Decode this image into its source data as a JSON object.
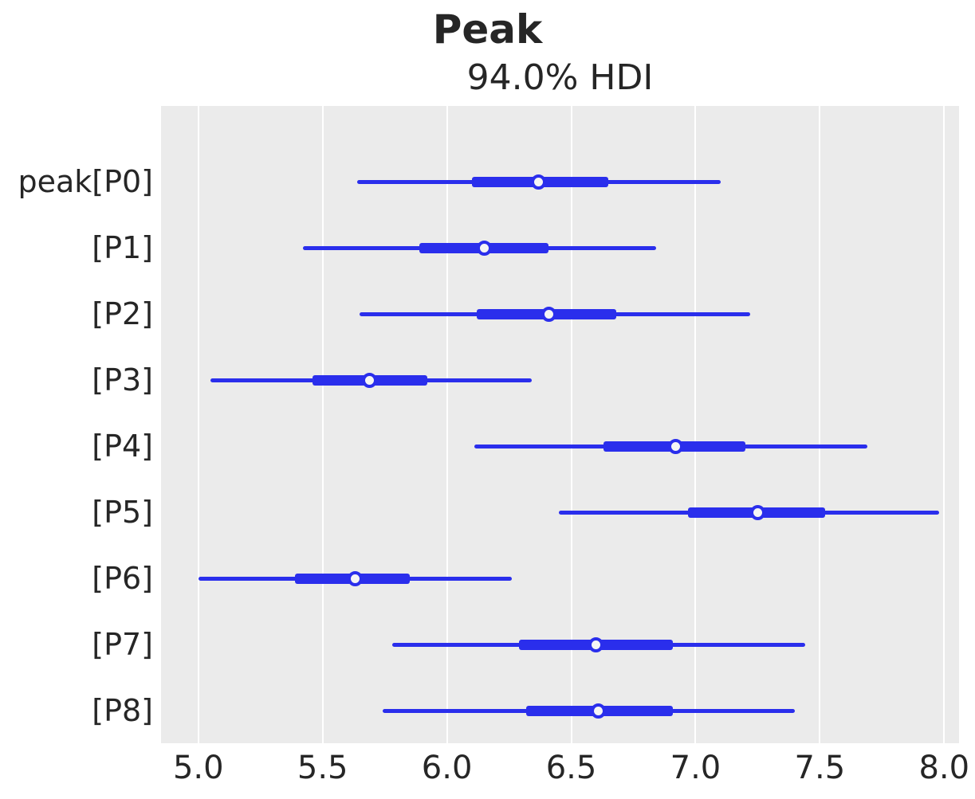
{
  "figure": {
    "title": "Peak",
    "subtitle": "94.0% HDI"
  },
  "chart_data": {
    "type": "forest",
    "title": "Peak",
    "subtitle": "94.0% HDI",
    "hdi_prob": 0.94,
    "xlabel": "",
    "ylabel": "",
    "xlim": [
      4.85,
      8.06
    ],
    "x_tick_values": [
      5.0,
      5.5,
      6.0,
      6.5,
      7.0,
      7.5,
      8.0
    ],
    "x_tick_labels": [
      "5.0",
      "5.5",
      "6.0",
      "6.5",
      "7.0",
      "7.5",
      "8.0"
    ],
    "grid": "vertical gridlines, white on light-gray panel",
    "legend": "none",
    "colors": {
      "line": "#2a2eec",
      "marker_face": "#f5f5f5",
      "plot_bg": "#ebebeb",
      "grid": "#ffffff",
      "text": "#262626",
      "page_bg": "#ffffff"
    },
    "rows": [
      {
        "label": "peak[P0]",
        "hdi_94": [
          5.64,
          7.1
        ],
        "interquartile": [
          6.1,
          6.65
        ],
        "median": 6.37
      },
      {
        "label": "[P1]",
        "hdi_94": [
          5.42,
          6.84
        ],
        "interquartile": [
          5.89,
          6.41
        ],
        "median": 6.15
      },
      {
        "label": "[P2]",
        "hdi_94": [
          5.65,
          7.22
        ],
        "interquartile": [
          6.12,
          6.68
        ],
        "median": 6.41
      },
      {
        "label": "[P3]",
        "hdi_94": [
          5.05,
          6.34
        ],
        "interquartile": [
          5.46,
          5.92
        ],
        "median": 5.69
      },
      {
        "label": "[P4]",
        "hdi_94": [
          6.11,
          7.69
        ],
        "interquartile": [
          6.63,
          7.2
        ],
        "median": 6.92
      },
      {
        "label": "[P5]",
        "hdi_94": [
          6.45,
          7.98
        ],
        "interquartile": [
          6.97,
          7.52
        ],
        "median": 7.25
      },
      {
        "label": "[P6]",
        "hdi_94": [
          5.0,
          6.26
        ],
        "interquartile": [
          5.39,
          5.85
        ],
        "median": 5.63
      },
      {
        "label": "[P7]",
        "hdi_94": [
          5.78,
          7.44
        ],
        "interquartile": [
          6.29,
          6.91
        ],
        "median": 6.6
      },
      {
        "label": "[P8]",
        "hdi_94": [
          5.74,
          7.4
        ],
        "interquartile": [
          6.32,
          6.91
        ],
        "median": 6.61
      }
    ]
  }
}
